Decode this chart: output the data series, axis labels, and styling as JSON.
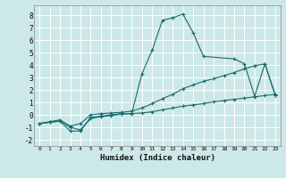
{
  "xlabel": "Humidex (Indice chaleur)",
  "ylabel": "",
  "background_color": "#cde8e8",
  "grid_color": "#b0d0d0",
  "line_color": "#1a6b6b",
  "xlim": [
    -0.5,
    23.5
  ],
  "ylim": [
    -2.5,
    8.8
  ],
  "xticks": [
    0,
    1,
    2,
    3,
    4,
    5,
    6,
    7,
    8,
    9,
    10,
    11,
    12,
    13,
    14,
    15,
    16,
    17,
    18,
    19,
    20,
    21,
    22,
    23
  ],
  "yticks": [
    -2,
    -1,
    0,
    1,
    2,
    3,
    4,
    5,
    6,
    7,
    8
  ],
  "line1_x": [
    0,
    1,
    2,
    3,
    4,
    5,
    6,
    7,
    8,
    9,
    10,
    11,
    12,
    13,
    14,
    15,
    16,
    19,
    20,
    21,
    22,
    23
  ],
  "line1_y": [
    -0.7,
    -0.6,
    -0.5,
    -1.3,
    -1.3,
    -0.2,
    -0.1,
    0.0,
    0.1,
    0.1,
    3.3,
    5.2,
    7.6,
    7.8,
    8.1,
    6.6,
    4.7,
    4.5,
    4.1,
    1.5,
    4.1,
    1.6
  ],
  "line2_x": [
    0,
    1,
    2,
    3,
    4,
    5,
    6,
    7,
    8,
    9,
    10,
    11,
    12,
    13,
    14,
    15,
    16,
    17,
    18,
    19,
    20,
    21,
    22,
    23
  ],
  "line2_y": [
    -0.7,
    -0.55,
    -0.4,
    -0.9,
    -0.7,
    0.0,
    0.1,
    0.15,
    0.2,
    0.3,
    0.55,
    0.9,
    1.3,
    1.65,
    2.1,
    2.4,
    2.7,
    2.9,
    3.15,
    3.4,
    3.7,
    3.95,
    4.1,
    1.6
  ],
  "line3_x": [
    0,
    1,
    2,
    3,
    4,
    5,
    6,
    7,
    8,
    9,
    10,
    11,
    12,
    13,
    14,
    15,
    16,
    17,
    18,
    19,
    20,
    21,
    22,
    23
  ],
  "line3_y": [
    -0.7,
    -0.6,
    -0.5,
    -1.0,
    -1.2,
    -0.3,
    -0.15,
    -0.05,
    0.05,
    0.1,
    0.15,
    0.25,
    0.4,
    0.55,
    0.7,
    0.8,
    0.9,
    1.05,
    1.15,
    1.25,
    1.35,
    1.45,
    1.55,
    1.65
  ]
}
